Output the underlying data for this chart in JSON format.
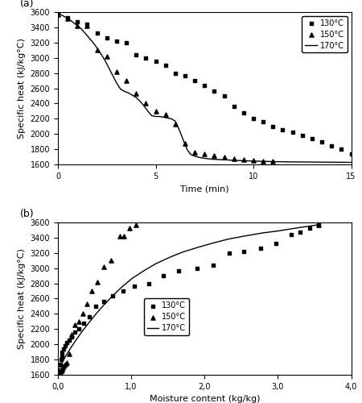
{
  "subplot_a": {
    "title": "(a)",
    "xlabel": "Time (min)",
    "ylabel": "Specific heat (kJ/kg°C)",
    "xlim": [
      0,
      15
    ],
    "ylim": [
      1600,
      3600
    ],
    "yticks": [
      1600,
      1800,
      2000,
      2200,
      2400,
      2600,
      2800,
      3000,
      3200,
      3400,
      3600
    ],
    "xticks": [
      0,
      5,
      10,
      15
    ],
    "legend_entries": [
      "130°C",
      "150°C",
      "170°C"
    ],
    "scatter_130_x": [
      0,
      0.5,
      1.0,
      1.5,
      2.0,
      2.5,
      3.0,
      3.5,
      4.0,
      4.5,
      5.0,
      5.5,
      6.0,
      6.5,
      7.0,
      7.5,
      8.0,
      8.5,
      9.0,
      9.5,
      10.0,
      10.5,
      11.0,
      11.5,
      12.0,
      12.5,
      13.0,
      13.5,
      14.0,
      14.5,
      15.0
    ],
    "scatter_130_y": [
      3570,
      3530,
      3470,
      3440,
      3320,
      3260,
      3220,
      3200,
      3040,
      3000,
      2960,
      2900,
      2800,
      2760,
      2700,
      2640,
      2560,
      2500,
      2360,
      2280,
      2200,
      2160,
      2100,
      2060,
      2020,
      1980,
      1940,
      1900,
      1840,
      1800,
      1740
    ],
    "scatter_150_x": [
      0,
      0.5,
      1.0,
      1.5,
      2.0,
      2.5,
      3.0,
      3.5,
      4.0,
      4.5,
      5.0,
      5.5,
      6.0,
      6.5,
      7.0,
      7.5,
      8.0,
      8.5,
      9.0,
      9.5,
      10.0,
      10.5,
      11.0
    ],
    "scatter_150_y": [
      3570,
      3520,
      3420,
      3420,
      3100,
      3020,
      2820,
      2700,
      2530,
      2400,
      2300,
      2260,
      2130,
      1880,
      1760,
      1740,
      1720,
      1700,
      1680,
      1660,
      1650,
      1640,
      1640
    ],
    "line_170_x": [
      0.0,
      0.2,
      0.4,
      0.6,
      0.8,
      1.0,
      1.2,
      1.4,
      1.6,
      1.8,
      2.0,
      2.2,
      2.4,
      2.6,
      2.8,
      3.0,
      3.2,
      3.4,
      3.6,
      3.8,
      4.0,
      4.2,
      4.4,
      4.6,
      4.8,
      5.0,
      5.2,
      5.4,
      5.6,
      5.8,
      6.0,
      6.2,
      6.4,
      6.6,
      6.8,
      7.0,
      7.2,
      7.4,
      7.6,
      7.8,
      8.0,
      9.0,
      10.0,
      11.0,
      12.0,
      13.0,
      14.0,
      15.0
    ],
    "line_170_y": [
      3580,
      3560,
      3530,
      3500,
      3460,
      3420,
      3380,
      3320,
      3260,
      3200,
      3130,
      3050,
      2970,
      2870,
      2770,
      2670,
      2590,
      2560,
      2540,
      2510,
      2480,
      2430,
      2370,
      2300,
      2240,
      2230,
      2230,
      2220,
      2210,
      2200,
      2170,
      2060,
      1930,
      1800,
      1730,
      1710,
      1695,
      1685,
      1678,
      1672,
      1668,
      1655,
      1645,
      1638,
      1634,
      1632,
      1630,
      1628
    ]
  },
  "subplot_b": {
    "title": "(b)",
    "xlabel": "Moisture content (kg/kg)",
    "ylabel": "Specific heat (kJ/kg°C)",
    "xlim": [
      0,
      4.0
    ],
    "ylim": [
      1600,
      3600
    ],
    "yticks": [
      1600,
      1800,
      2000,
      2200,
      2400,
      2600,
      2800,
      3000,
      3200,
      3400,
      3600
    ],
    "xticks": [
      0.0,
      1.0,
      2.0,
      3.0,
      4.0
    ],
    "xticklabels": [
      "0,0",
      "1,0",
      "2,0",
      "3,0",
      "4,0"
    ],
    "legend_entries": [
      "130°C",
      "150°C",
      "170°C"
    ],
    "curve_x": [
      0.0,
      0.02,
      0.05,
      0.08,
      0.12,
      0.18,
      0.25,
      0.33,
      0.42,
      0.52,
      0.63,
      0.75,
      0.88,
      1.02,
      1.18,
      1.34,
      1.52,
      1.7,
      1.9,
      2.1,
      2.32,
      2.54,
      2.78,
      3.02,
      3.28,
      3.56
    ],
    "curve_y": [
      1628,
      1680,
      1740,
      1800,
      1870,
      1960,
      2060,
      2170,
      2280,
      2400,
      2520,
      2640,
      2760,
      2870,
      2970,
      3060,
      3140,
      3210,
      3270,
      3325,
      3380,
      3420,
      3460,
      3490,
      3530,
      3570
    ],
    "scatter_130_x": [
      3.56,
      3.44,
      3.3,
      3.18,
      2.97,
      2.76,
      2.54,
      2.34,
      2.12,
      1.9,
      1.65,
      1.44,
      1.24,
      1.04,
      0.89,
      0.75,
      0.63,
      0.52,
      0.43,
      0.35,
      0.28,
      0.23,
      0.19,
      0.15,
      0.12,
      0.1,
      0.08,
      0.06,
      0.05,
      0.04,
      0.03
    ],
    "scatter_130_y": [
      3570,
      3530,
      3470,
      3440,
      3320,
      3260,
      3220,
      3200,
      3040,
      3000,
      2960,
      2900,
      2800,
      2760,
      2700,
      2640,
      2560,
      2500,
      2360,
      2280,
      2200,
      2160,
      2100,
      2060,
      2020,
      1980,
      1940,
      1900,
      1840,
      1800,
      1740
    ],
    "scatter_150_x": [
      1.06,
      0.98,
      0.9,
      0.84,
      0.72,
      0.63,
      0.54,
      0.46,
      0.4,
      0.34,
      0.28,
      0.23,
      0.19,
      0.15,
      0.12,
      0.1,
      0.08,
      0.07,
      0.06,
      0.05,
      0.04,
      0.03,
      0.02
    ],
    "scatter_150_y": [
      3570,
      3520,
      3420,
      3420,
      3100,
      3020,
      2820,
      2700,
      2530,
      2400,
      2300,
      2260,
      2130,
      1880,
      1760,
      1740,
      1720,
      1700,
      1680,
      1660,
      1650,
      1640,
      1640
    ],
    "triangle_150_x": [
      3.56
    ],
    "triangle_150_y": [
      3570
    ]
  }
}
